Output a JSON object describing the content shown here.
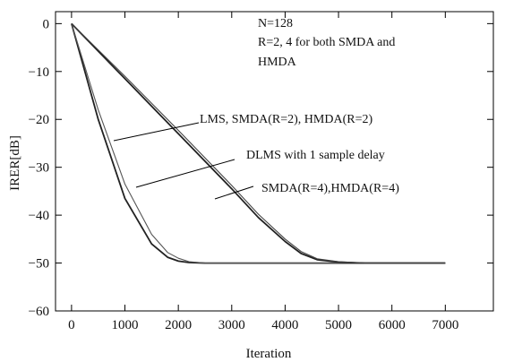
{
  "chart_data": {
    "type": "line",
    "xlabel": "Iteration",
    "ylabel": "IRER[dB]",
    "xlim": [
      -300,
      7900
    ],
    "ylim": [
      -60,
      2.5
    ],
    "xticks": [
      0,
      1000,
      2000,
      3000,
      4000,
      5000,
      6000,
      7000
    ],
    "yticks": [
      0,
      -10,
      -20,
      -30,
      -40,
      -50,
      -60
    ],
    "xtick_labels": [
      "0",
      "1000",
      "2000",
      "3000",
      "4000",
      "5000",
      "6000",
      "7000"
    ],
    "ytick_labels": [
      "0",
      "−10",
      "−20",
      "−30",
      "−40",
      "−50",
      "−60"
    ],
    "grid": false,
    "legend": "none",
    "annotations": [
      "N=128",
      "R=2, 4 for both SMDA and",
      "HMDA",
      "LMS, SMDA(R=2), HMDA(R=2)",
      "DLMS with 1 sample delay",
      "SMDA(R=4),HMDA(R=4)"
    ],
    "series": [
      {
        "x": [
          0,
          500,
          1000,
          1500,
          1800,
          2000,
          2200,
          2500,
          3000,
          4000,
          7000
        ],
        "y": [
          0,
          -20,
          -36.5,
          -46,
          -48.8,
          -49.6,
          -49.9,
          -50,
          -50,
          -50,
          -50
        ]
      },
      {
        "x": [
          0,
          500,
          1000,
          1500,
          1800,
          2000,
          2200,
          2500,
          3000,
          4000,
          7000
        ],
        "y": [
          0,
          -18,
          -33.5,
          -44,
          -47.8,
          -49,
          -49.7,
          -50,
          -50,
          -50,
          -50
        ]
      },
      {
        "x": [
          0,
          1000,
          2000,
          3000,
          3500,
          4000,
          4300,
          4600,
          5000,
          5500,
          7000
        ],
        "y": [
          0,
          -11.5,
          -23,
          -34.5,
          -40.5,
          -45.5,
          -48,
          -49.3,
          -49.8,
          -50,
          -50
        ]
      },
      {
        "x": [
          0,
          1000,
          2000,
          3000,
          3500,
          4000,
          4300,
          4600,
          5000,
          5500,
          7000
        ],
        "y": [
          0,
          -11,
          -22.3,
          -33.8,
          -39.8,
          -45,
          -47.6,
          -49.1,
          -49.7,
          -50,
          -50
        ]
      }
    ]
  }
}
